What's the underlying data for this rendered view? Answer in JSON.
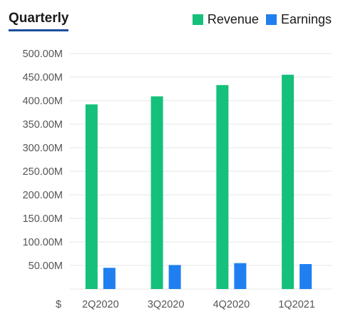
{
  "tab_title": "Quarterly",
  "colors": {
    "revenue": "#14c07b",
    "earnings": "#1f7ff0",
    "grid": "#e6e6e6",
    "tab_underline": "#1a4fa0"
  },
  "chart_data": {
    "type": "bar",
    "categories": [
      "2Q2020",
      "3Q2020",
      "4Q2020",
      "1Q2021"
    ],
    "series": [
      {
        "name": "Revenue",
        "color": "#14c07b",
        "values": [
          392000000,
          409000000,
          433000000,
          455000000
        ]
      },
      {
        "name": "Earnings",
        "color": "#1f7ff0",
        "values": [
          45000000,
          51000000,
          55000000,
          53000000
        ]
      }
    ],
    "yticks": [
      {
        "value": 50000000,
        "label": "50.00M"
      },
      {
        "value": 100000000,
        "label": "100.00M"
      },
      {
        "value": 150000000,
        "label": "150.00M"
      },
      {
        "value": 200000000,
        "label": "200.00M"
      },
      {
        "value": 250000000,
        "label": "250.00M"
      },
      {
        "value": 300000000,
        "label": "300.00M"
      },
      {
        "value": 350000000,
        "label": "350.00M"
      },
      {
        "value": 400000000,
        "label": "400.00M"
      },
      {
        "value": 450000000,
        "label": "450.00M"
      },
      {
        "value": 500000000,
        "label": "500.00M"
      }
    ],
    "ylim": [
      0,
      500000000
    ],
    "y_axis_unit": "$",
    "grid": true,
    "legend_position": "top-right"
  }
}
